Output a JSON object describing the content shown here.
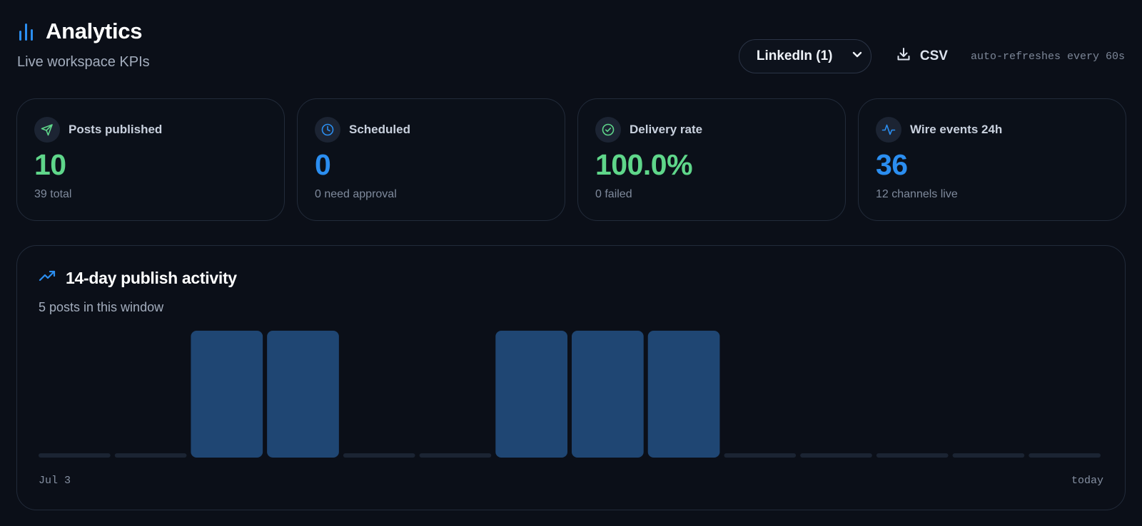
{
  "header": {
    "title": "Analytics",
    "subtitle": "Live workspace KPIs",
    "title_icon": "bar-chart-icon"
  },
  "controls": {
    "platform_select": "LinkedIn (1)",
    "csv_label": "CSV",
    "refresh_note": "auto-refreshes every 60s"
  },
  "kpis": [
    {
      "label": "Posts published",
      "value": "10",
      "sub": "39 total",
      "icon": "send-icon",
      "color": "#5fd68a"
    },
    {
      "label": "Scheduled",
      "value": "0",
      "sub": "0 need approval",
      "icon": "clock-icon",
      "color": "#2b8ef0"
    },
    {
      "label": "Delivery rate",
      "value": "100.0%",
      "sub": "0 failed",
      "icon": "check-circle-icon",
      "color": "#5fd68a"
    },
    {
      "label": "Wire events 24h",
      "value": "36",
      "sub": "12 channels live",
      "icon": "activity-icon",
      "color": "#2b8ef0"
    }
  ],
  "activity": {
    "title": "14-day publish activity",
    "subtitle": "5 posts in this window",
    "start_label": "Jul 3",
    "end_label": "today",
    "icon": "trending-up-icon"
  },
  "chart_data": {
    "type": "bar",
    "title": "14-day publish activity",
    "categories": [
      "Jul 3",
      "",
      "",
      "",
      "",
      "",
      "",
      "",
      "",
      "",
      "",
      "",
      "",
      "today"
    ],
    "values": [
      0,
      0,
      1,
      1,
      0,
      0,
      1,
      1,
      1,
      0,
      0,
      0,
      0,
      0
    ],
    "ylim": [
      0,
      1
    ],
    "bar_color": "#1f4673",
    "empty_color": "#1b2433",
    "grid": false
  }
}
